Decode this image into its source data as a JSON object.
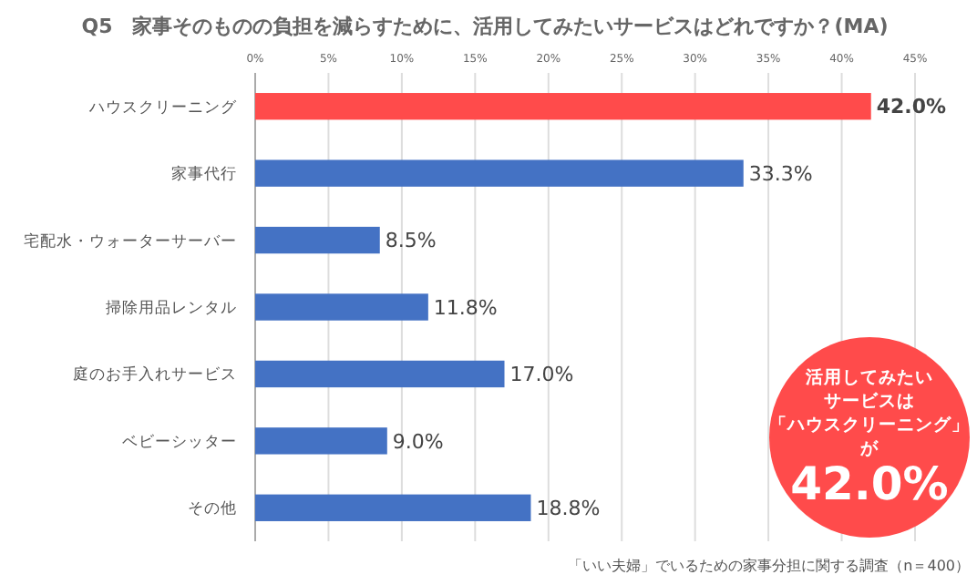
{
  "chart_data": {
    "type": "bar",
    "orientation": "horizontal",
    "title": "Q5　家事そのものの負担を減らすために、活用してみたいサービスはどれですか？(MA)",
    "categories": [
      "ハウスクリーニング",
      "家事代行",
      "宅配水・ウォーターサーバー",
      "掃除用品レンタル",
      "庭のお手入れサービス",
      "ベビーシッター",
      "その他"
    ],
    "values": [
      42.0,
      33.3,
      8.5,
      11.8,
      17.0,
      9.0,
      18.8
    ],
    "colors": [
      "#ff4b4b",
      "#4472c4",
      "#4472c4",
      "#4472c4",
      "#4472c4",
      "#4472c4",
      "#4472c4"
    ],
    "value_labels": [
      "42.0%",
      "33.3%",
      "8.5%",
      "11.8%",
      "17.0%",
      "9.0%",
      "18.8%"
    ],
    "xlim": [
      0,
      45
    ],
    "xticks": [
      {
        "value": 0,
        "label": "0%"
      },
      {
        "value": 5,
        "label": "5%"
      },
      {
        "value": 10,
        "label": "10%"
      },
      {
        "value": 15,
        "label": "15%"
      },
      {
        "value": 20,
        "label": "20%"
      },
      {
        "value": 25,
        "label": "25%"
      },
      {
        "value": 30,
        "label": "30%"
      },
      {
        "value": 35,
        "label": "35%"
      },
      {
        "value": 40,
        "label": "40%"
      },
      {
        "value": 45,
        "label": "45%"
      }
    ],
    "grid": "x",
    "annotations": [
      "活用してみたい",
      "サービスは",
      "「ハウスクリーニング」",
      "が",
      "42.0%",
      "「いい夫婦」でいるための家事分担に関する調査（n＝400）"
    ]
  }
}
